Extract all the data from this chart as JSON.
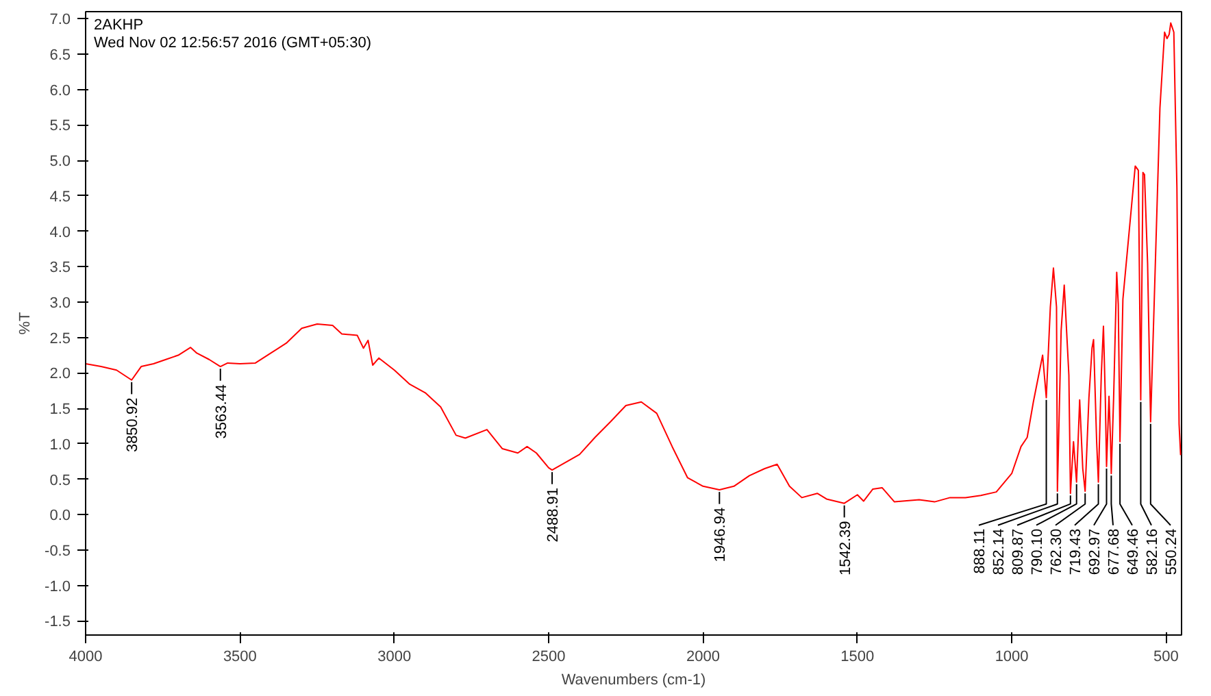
{
  "chart_data": {
    "type": "line",
    "xlabel": "Wavenumbers (cm-1)",
    "ylabel": "%T",
    "annotations": [
      "2AKHP",
      "Wed Nov 02 12:56:57 2016 (GMT+05:30)",
      {
        "text": "3850.92",
        "x": 3850.92,
        "y": 1.9
      },
      {
        "text": "3563.44",
        "x": 3563.44,
        "y": 2.09
      },
      {
        "text": "2488.91",
        "x": 2488.91,
        "y": 0.63
      },
      {
        "text": "1946.94",
        "x": 1946.94,
        "y": 0.35
      },
      {
        "text": "1542.39",
        "x": 1542.39,
        "y": 0.16
      },
      {
        "text": "888.11",
        "x": 888.11,
        "y": 1.65
      },
      {
        "text": "852.14",
        "x": 852.14,
        "y": 0.33
      },
      {
        "text": "809.87",
        "x": 809.87,
        "y": 0.3
      },
      {
        "text": "790.10",
        "x": 790.1,
        "y": 0.46
      },
      {
        "text": "762.30",
        "x": 762.3,
        "y": 0.33
      },
      {
        "text": "719.43",
        "x": 719.43,
        "y": 0.46
      },
      {
        "text": "692.97",
        "x": 692.97,
        "y": 0.68
      },
      {
        "text": "677.68",
        "x": 677.68,
        "y": 0.58
      },
      {
        "text": "649.46",
        "x": 649.46,
        "y": 1.03
      },
      {
        "text": "582.16",
        "x": 582.16,
        "y": 1.62
      },
      {
        "text": "550.24",
        "x": 550.24,
        "y": 1.31
      }
    ],
    "series": [
      {
        "color": "#ff0000",
        "x": [
          4000,
          3950,
          3900,
          3850.92,
          3820,
          3780,
          3740,
          3700,
          3660,
          3640,
          3600,
          3563.44,
          3540,
          3500,
          3450,
          3400,
          3350,
          3300,
          3250,
          3200,
          3170,
          3120,
          3100,
          3085,
          3070,
          3050,
          3000,
          2950,
          2900,
          2850,
          2800,
          2770,
          2700,
          2650,
          2600,
          2570,
          2540,
          2500,
          2488.91,
          2400,
          2350,
          2300,
          2250,
          2200,
          2150,
          2100,
          2050,
          2000,
          1946.94,
          1900,
          1850,
          1800,
          1760,
          1720,
          1680,
          1630,
          1600,
          1542.39,
          1500,
          1480,
          1450,
          1420,
          1380,
          1300,
          1250,
          1200,
          1150,
          1100,
          1050,
          1000,
          970,
          950,
          930,
          900,
          888.11,
          875,
          865,
          855,
          852.14,
          840,
          830,
          815,
          809.87,
          800,
          790.1,
          780,
          770,
          762.3,
          750,
          740,
          735,
          725,
          719.43,
          710,
          703,
          697,
          692.97,
          685,
          680,
          677.68,
          670,
          660,
          655,
          649.46,
          640,
          620,
          600,
          590,
          582.16,
          575,
          570,
          560,
          550.24,
          540,
          520,
          505,
          497,
          490,
          485,
          475,
          465,
          458,
          453
        ],
        "values": [
          2.13,
          2.09,
          2.04,
          1.9,
          2.09,
          2.13,
          2.19,
          2.25,
          2.36,
          2.28,
          2.19,
          2.09,
          2.14,
          2.13,
          2.14,
          2.28,
          2.42,
          2.63,
          2.69,
          2.67,
          2.55,
          2.53,
          2.35,
          2.46,
          2.11,
          2.21,
          2.04,
          1.84,
          1.72,
          1.52,
          1.12,
          1.08,
          1.2,
          0.93,
          0.87,
          0.96,
          0.87,
          0.66,
          0.63,
          0.85,
          1.09,
          1.31,
          1.54,
          1.59,
          1.43,
          0.96,
          0.52,
          0.4,
          0.35,
          0.4,
          0.55,
          0.65,
          0.71,
          0.4,
          0.24,
          0.3,
          0.22,
          0.16,
          0.28,
          0.19,
          0.36,
          0.38,
          0.18,
          0.21,
          0.18,
          0.24,
          0.24,
          0.27,
          0.32,
          0.58,
          0.96,
          1.09,
          1.59,
          2.25,
          1.65,
          2.93,
          3.48,
          2.93,
          0.33,
          2.6,
          3.24,
          1.97,
          0.3,
          1.03,
          0.46,
          1.62,
          0.65,
          0.33,
          1.65,
          2.35,
          2.47,
          1.03,
          0.46,
          1.97,
          2.66,
          1.65,
          0.68,
          1.67,
          1.03,
          0.58,
          1.65,
          3.42,
          2.97,
          1.03,
          3.04,
          3.98,
          4.92,
          4.86,
          1.62,
          4.83,
          4.8,
          3.55,
          1.31,
          2.79,
          5.74,
          6.81,
          6.72,
          6.78,
          6.94,
          6.81,
          4.61,
          1.28,
          0.84
        ]
      }
    ],
    "xlim": [
      4000,
      450
    ],
    "ylim": [
      -1.7,
      7.1
    ],
    "xticks": [
      4000,
      3500,
      3000,
      2500,
      2000,
      1500,
      1000,
      500
    ],
    "yticks": [
      {
        "value": -1.5,
        "label": "-1.5"
      },
      {
        "value": -1,
        "label": "-1.0"
      },
      {
        "value": -0.5,
        "label": "-0.5"
      },
      {
        "value": 0,
        "label": "0.0"
      },
      {
        "value": 0.5,
        "label": "0.5"
      },
      {
        "value": 1,
        "label": "1.0"
      },
      {
        "value": 1.5,
        "label": "1.5"
      },
      {
        "value": 2,
        "label": "2.0"
      },
      {
        "value": 2.5,
        "label": "2.5"
      },
      {
        "value": 3,
        "label": "3.0"
      },
      {
        "value": 3.5,
        "label": "3.5"
      },
      {
        "value": 4,
        "label": "4.0"
      },
      {
        "value": 4.5,
        "label": "4.5"
      },
      {
        "value": 5,
        "label": "5.0"
      },
      {
        "value": 5.5,
        "label": "5.5"
      },
      {
        "value": 6,
        "label": "6.0"
      },
      {
        "value": 6.5,
        "label": "6.5"
      },
      {
        "value": 7,
        "label": "7.0"
      }
    ],
    "grid": false,
    "marker": "none",
    "line_style": "solid"
  }
}
